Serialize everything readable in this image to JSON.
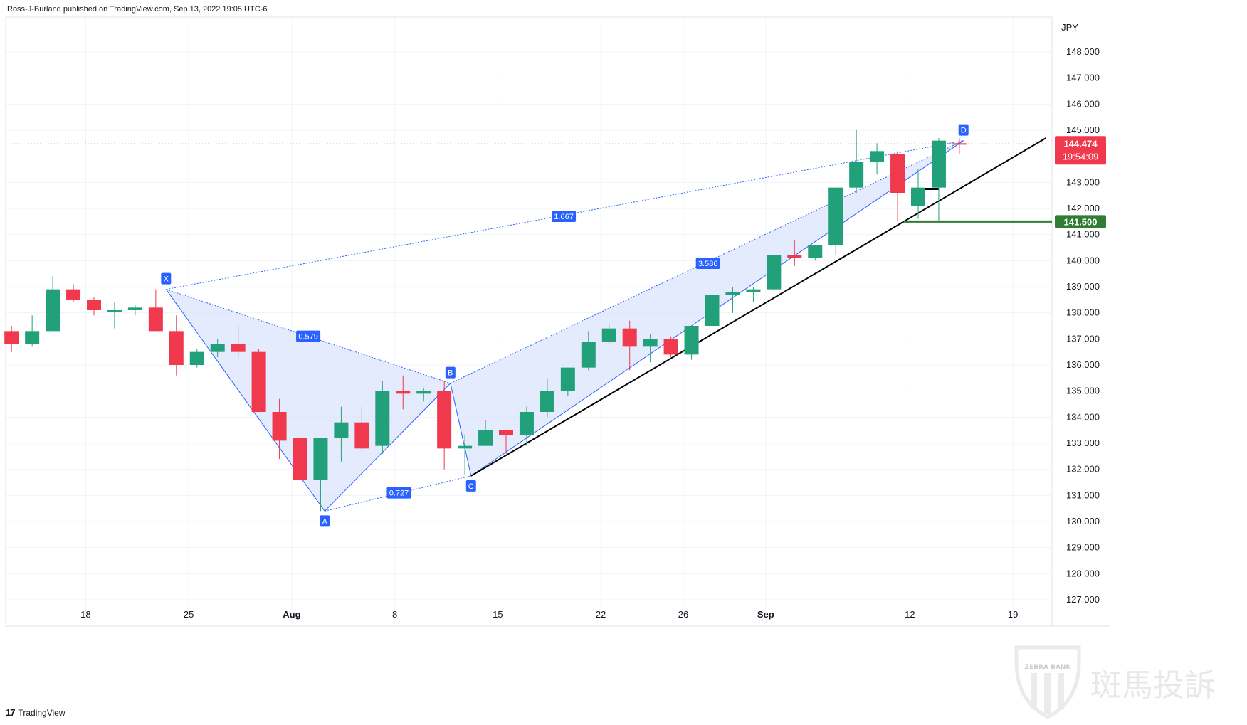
{
  "header": {
    "published_text": "Ross-J-Burland published on TradingView.com, Sep 13, 2022 19:05 UTC-6"
  },
  "footer": {
    "brand": "TradingView",
    "logo_text": "17"
  },
  "watermark": {
    "text": "斑馬投訴",
    "badge_text": "ZEBRA BANK"
  },
  "colors": {
    "up": "#22a07a",
    "down": "#f0394d",
    "pattern": "#2962ff",
    "pattern_fill": "#dbe4fb",
    "support": "#2e7d32",
    "trend": "#000000"
  },
  "chart_data": {
    "type": "candlestick",
    "currency": "JPY",
    "ylim": [
      126.6,
      149.0
    ],
    "y_ticks": [
      "148.000",
      "147.000",
      "146.000",
      "145.000",
      "143.000",
      "142.000",
      "141.000",
      "140.000",
      "139.000",
      "138.000",
      "137.000",
      "136.000",
      "135.000",
      "134.000",
      "133.000",
      "132.000",
      "131.000",
      "130.000",
      "129.000",
      "128.000",
      "127.000"
    ],
    "x_labels": [
      {
        "label": "18",
        "index": 3.6,
        "bold": false
      },
      {
        "label": "25",
        "index": 8.6,
        "bold": false
      },
      {
        "label": "Aug",
        "index": 13.6,
        "bold": true
      },
      {
        "label": "8",
        "index": 18.6,
        "bold": false
      },
      {
        "label": "15",
        "index": 23.6,
        "bold": false
      },
      {
        "label": "22",
        "index": 28.6,
        "bold": false
      },
      {
        "label": "26",
        "index": 32.6,
        "bold": false
      },
      {
        "label": "Sep",
        "index": 36.6,
        "bold": true
      },
      {
        "label": "12",
        "index": 43.6,
        "bold": false
      },
      {
        "label": "19",
        "index": 48.6,
        "bold": false
      }
    ],
    "candles": [
      {
        "o": 137.3,
        "h": 137.5,
        "l": 136.5,
        "c": 136.8
      },
      {
        "o": 136.8,
        "h": 137.9,
        "l": 136.7,
        "c": 137.3
      },
      {
        "o": 137.3,
        "h": 139.4,
        "l": 137.3,
        "c": 138.9
      },
      {
        "o": 138.9,
        "h": 139.1,
        "l": 138.4,
        "c": 138.5
      },
      {
        "o": 138.5,
        "h": 138.6,
        "l": 137.9,
        "c": 138.1
      },
      {
        "o": 138.1,
        "h": 138.4,
        "l": 137.4,
        "c": 138.1
      },
      {
        "o": 138.1,
        "h": 138.3,
        "l": 137.9,
        "c": 138.2
      },
      {
        "o": 138.2,
        "h": 138.9,
        "l": 137.3,
        "c": 137.3
      },
      {
        "o": 137.3,
        "h": 137.9,
        "l": 135.6,
        "c": 136.0
      },
      {
        "o": 136.0,
        "h": 136.6,
        "l": 135.9,
        "c": 136.5
      },
      {
        "o": 136.5,
        "h": 137.0,
        "l": 136.3,
        "c": 136.8
      },
      {
        "o": 136.8,
        "h": 137.5,
        "l": 136.3,
        "c": 136.5
      },
      {
        "o": 136.5,
        "h": 136.6,
        "l": 134.2,
        "c": 134.2
      },
      {
        "o": 134.2,
        "h": 134.7,
        "l": 132.4,
        "c": 133.1
      },
      {
        "o": 133.2,
        "h": 133.5,
        "l": 131.6,
        "c": 131.6
      },
      {
        "o": 131.6,
        "h": 133.2,
        "l": 130.4,
        "c": 133.2
      },
      {
        "o": 133.2,
        "h": 134.4,
        "l": 132.3,
        "c": 133.8
      },
      {
        "o": 133.8,
        "h": 134.4,
        "l": 132.7,
        "c": 132.8
      },
      {
        "o": 132.9,
        "h": 135.4,
        "l": 132.6,
        "c": 135.0
      },
      {
        "o": 135.0,
        "h": 135.6,
        "l": 134.3,
        "c": 134.9
      },
      {
        "o": 134.9,
        "h": 135.1,
        "l": 134.6,
        "c": 135.0
      },
      {
        "o": 135.0,
        "h": 135.4,
        "l": 132.0,
        "c": 132.8
      },
      {
        "o": 132.8,
        "h": 133.3,
        "l": 131.8,
        "c": 132.9
      },
      {
        "o": 132.9,
        "h": 133.9,
        "l": 132.9,
        "c": 133.5
      },
      {
        "o": 133.5,
        "h": 133.5,
        "l": 132.6,
        "c": 133.3
      },
      {
        "o": 133.3,
        "h": 134.4,
        "l": 132.9,
        "c": 134.2
      },
      {
        "o": 134.2,
        "h": 135.5,
        "l": 134.0,
        "c": 135.0
      },
      {
        "o": 135.0,
        "h": 135.9,
        "l": 134.8,
        "c": 135.9
      },
      {
        "o": 135.9,
        "h": 137.3,
        "l": 135.8,
        "c": 136.9
      },
      {
        "o": 136.9,
        "h": 137.6,
        "l": 136.8,
        "c": 137.4
      },
      {
        "o": 137.4,
        "h": 137.7,
        "l": 135.8,
        "c": 136.7
      },
      {
        "o": 136.7,
        "h": 137.2,
        "l": 136.1,
        "c": 137.0
      },
      {
        "o": 137.0,
        "h": 137.1,
        "l": 136.3,
        "c": 136.4
      },
      {
        "o": 136.4,
        "h": 137.5,
        "l": 136.2,
        "c": 137.5
      },
      {
        "o": 137.5,
        "h": 139.0,
        "l": 137.5,
        "c": 138.7
      },
      {
        "o": 138.7,
        "h": 139.0,
        "l": 138.0,
        "c": 138.8
      },
      {
        "o": 138.8,
        "h": 139.0,
        "l": 138.4,
        "c": 138.9
      },
      {
        "o": 138.9,
        "h": 140.2,
        "l": 138.8,
        "c": 140.2
      },
      {
        "o": 140.2,
        "h": 140.8,
        "l": 139.8,
        "c": 140.1
      },
      {
        "o": 140.1,
        "h": 140.6,
        "l": 140.0,
        "c": 140.6
      },
      {
        "o": 140.6,
        "h": 142.8,
        "l": 140.2,
        "c": 142.8
      },
      {
        "o": 142.8,
        "h": 145.0,
        "l": 142.6,
        "c": 143.8
      },
      {
        "o": 143.8,
        "h": 144.5,
        "l": 143.3,
        "c": 144.2
      },
      {
        "o": 144.1,
        "h": 144.2,
        "l": 141.5,
        "c": 142.6
      },
      {
        "o": 142.1,
        "h": 143.5,
        "l": 141.6,
        "c": 142.8
      },
      {
        "o": 142.8,
        "h": 144.7,
        "l": 141.5,
        "c": 144.6
      },
      {
        "o": 144.5,
        "h": 144.7,
        "l": 144.1,
        "c": 144.474
      }
    ],
    "pattern": {
      "points": [
        {
          "label": "X",
          "index": 7.5,
          "price": 138.9,
          "side": "above"
        },
        {
          "label": "A",
          "index": 15.2,
          "price": 130.4,
          "side": "below"
        },
        {
          "label": "B",
          "index": 21.3,
          "price": 135.3,
          "side": "above"
        },
        {
          "label": "C",
          "index": 22.3,
          "price": 131.75,
          "side": "below"
        },
        {
          "label": "D",
          "index": 46.2,
          "price": 144.6,
          "side": "above"
        }
      ],
      "ratios": [
        {
          "value": "1.667",
          "index": 26.8,
          "price": 141.7
        },
        {
          "value": "0.579",
          "index": 14.4,
          "price": 137.1
        },
        {
          "value": "0.727",
          "index": 18.8,
          "price": 131.1
        },
        {
          "value": "3.586",
          "index": 33.8,
          "price": 139.9
        }
      ]
    },
    "trendline": {
      "start": {
        "index": 22.3,
        "price": 131.75
      },
      "end": {
        "index": 50.2,
        "price": 144.7
      }
    },
    "support": {
      "label": "141.500",
      "price": 141.5,
      "start_index": 43.3
    },
    "current_price": {
      "value": "144.474",
      "price": 144.474,
      "countdown": "19:54:09"
    },
    "markers": [
      {
        "index": 44.5,
        "price": 142.75
      }
    ]
  }
}
